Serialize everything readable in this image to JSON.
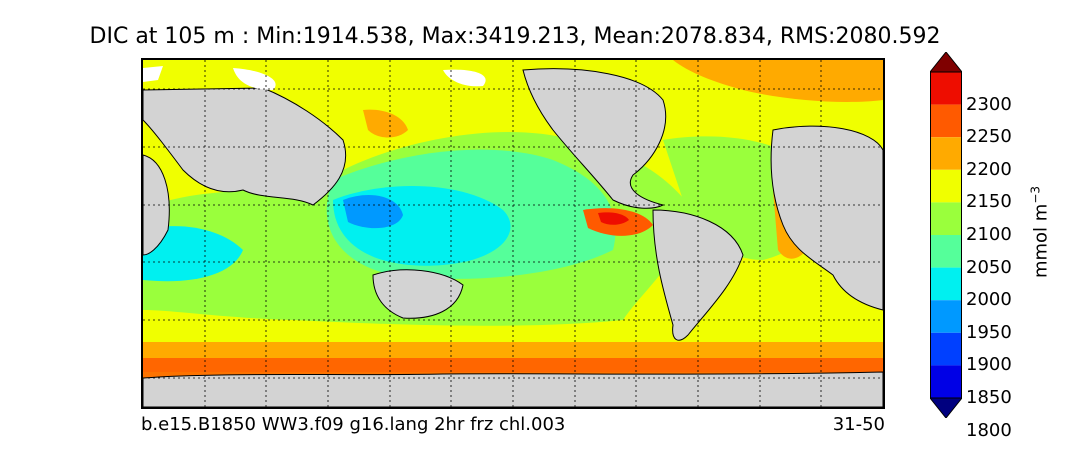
{
  "title": "DIC at 105 m : Min:1914.538, Max:3419.213, Mean:2078.834, RMS:2080.592",
  "caption_left": "b.e15.B1850 WW3.f09 g16.lang 2hr frz chl.003",
  "caption_right": "31-50",
  "colorbar": {
    "unit_base": "mmol m",
    "unit_exp": "−3",
    "ticks": [
      "2300",
      "2250",
      "2200",
      "2150",
      "2100",
      "2050",
      "2000",
      "1950",
      "1900",
      "1850",
      "1800"
    ],
    "levels": [
      {
        "value": 1775,
        "color": "#00007f"
      },
      {
        "value": 1825,
        "color": "#0000e6"
      },
      {
        "value": 1875,
        "color": "#0040ff"
      },
      {
        "value": 1925,
        "color": "#0099ff"
      },
      {
        "value": 1975,
        "color": "#00f0f0"
      },
      {
        "value": 2025,
        "color": "#55ff9a"
      },
      {
        "value": 2075,
        "color": "#9aff3c"
      },
      {
        "value": 2125,
        "color": "#f0ff00"
      },
      {
        "value": 2175,
        "color": "#ffaa00"
      },
      {
        "value": 2225,
        "color": "#ff5a00"
      },
      {
        "value": 2275,
        "color": "#ee0d00"
      },
      {
        "value": 2325,
        "color": "#7f0000"
      }
    ],
    "land_color": "#d3d3d3"
  }
}
